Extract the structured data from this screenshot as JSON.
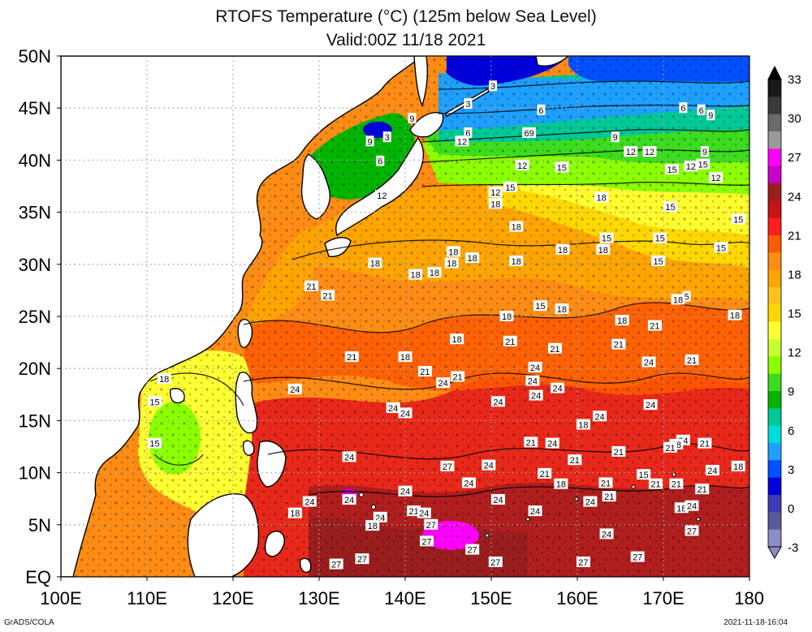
{
  "title_line1": "RTOFS Temperature (°C) (125m below Sea Level)",
  "title_line2": "Valid:00Z 11/18 2021",
  "footer_left": "GrADS/COLA",
  "footer_right": "2021-11-18-16:04",
  "map": {
    "lon_range": [
      100,
      180
    ],
    "lat_range": [
      0,
      50
    ],
    "lon_ticks": [
      {
        "value": 100,
        "label": "100E"
      },
      {
        "value": 110,
        "label": "110E"
      },
      {
        "value": 120,
        "label": "120E"
      },
      {
        "value": 130,
        "label": "130E"
      },
      {
        "value": 140,
        "label": "140E"
      },
      {
        "value": 150,
        "label": "150E"
      },
      {
        "value": 160,
        "label": "160E"
      },
      {
        "value": 170,
        "label": "170E"
      },
      {
        "value": 180,
        "label": "180"
      }
    ],
    "lat_ticks": [
      {
        "value": 0,
        "label": "EQ"
      },
      {
        "value": 5,
        "label": "5N"
      },
      {
        "value": 10,
        "label": "10N"
      },
      {
        "value": 15,
        "label": "15N"
      },
      {
        "value": 20,
        "label": "20N"
      },
      {
        "value": 25,
        "label": "25N"
      },
      {
        "value": 30,
        "label": "30N"
      },
      {
        "value": 35,
        "label": "35N"
      },
      {
        "value": 40,
        "label": "40N"
      },
      {
        "value": 45,
        "label": "45N"
      },
      {
        "value": 50,
        "label": "50N"
      }
    ],
    "grid": "dotted",
    "contour_labels": [
      {
        "lon": 150.2,
        "lat": 47.1,
        "text": "3"
      },
      {
        "lon": 147.3,
        "lat": 45.4,
        "text": "3"
      },
      {
        "lon": 155.8,
        "lat": 44.8,
        "text": "6"
      },
      {
        "lon": 172.3,
        "lat": 45.0,
        "text": "6"
      },
      {
        "lon": 174.4,
        "lat": 44.8,
        "text": "6"
      },
      {
        "lon": 175.5,
        "lat": 44.3,
        "text": "9"
      },
      {
        "lon": 154.4,
        "lat": 42.6,
        "text": "69"
      },
      {
        "lon": 164.4,
        "lat": 42.2,
        "text": "9"
      },
      {
        "lon": 166.2,
        "lat": 40.8,
        "text": "12"
      },
      {
        "lon": 168.4,
        "lat": 40.8,
        "text": "12"
      },
      {
        "lon": 174.8,
        "lat": 40.8,
        "text": "9"
      },
      {
        "lon": 147.3,
        "lat": 42.6,
        "text": "6"
      },
      {
        "lon": 146.6,
        "lat": 41.8,
        "text": "12"
      },
      {
        "lon": 140.8,
        "lat": 44.0,
        "text": "9"
      },
      {
        "lon": 137.9,
        "lat": 42.2,
        "text": "3"
      },
      {
        "lon": 135.9,
        "lat": 41.8,
        "text": "9"
      },
      {
        "lon": 137.1,
        "lat": 39.9,
        "text": "6"
      },
      {
        "lon": 137.3,
        "lat": 36.6,
        "text": "12"
      },
      {
        "lon": 153.6,
        "lat": 39.5,
        "text": "12"
      },
      {
        "lon": 158.2,
        "lat": 39.3,
        "text": "15"
      },
      {
        "lon": 171.0,
        "lat": 39.1,
        "text": "15"
      },
      {
        "lon": 173.2,
        "lat": 39.4,
        "text": "12"
      },
      {
        "lon": 174.6,
        "lat": 39.6,
        "text": "15"
      },
      {
        "lon": 176.1,
        "lat": 38.3,
        "text": "12"
      },
      {
        "lon": 150.5,
        "lat": 36.9,
        "text": "12"
      },
      {
        "lon": 152.2,
        "lat": 37.4,
        "text": "15"
      },
      {
        "lon": 150.5,
        "lat": 35.8,
        "text": "18"
      },
      {
        "lon": 162.8,
        "lat": 36.4,
        "text": "18"
      },
      {
        "lon": 170.8,
        "lat": 35.5,
        "text": "15"
      },
      {
        "lon": 178.7,
        "lat": 34.3,
        "text": "15"
      },
      {
        "lon": 152.9,
        "lat": 33.6,
        "text": "18"
      },
      {
        "lon": 163.4,
        "lat": 32.5,
        "text": "15"
      },
      {
        "lon": 169.6,
        "lat": 32.5,
        "text": "15"
      },
      {
        "lon": 176.7,
        "lat": 31.6,
        "text": "15"
      },
      {
        "lon": 147.8,
        "lat": 30.6,
        "text": "18"
      },
      {
        "lon": 145.6,
        "lat": 31.2,
        "text": "18"
      },
      {
        "lon": 158.3,
        "lat": 31.4,
        "text": "18"
      },
      {
        "lon": 163.0,
        "lat": 31.4,
        "text": "18"
      },
      {
        "lon": 145.4,
        "lat": 30.1,
        "text": "18"
      },
      {
        "lon": 136.5,
        "lat": 30.1,
        "text": "18"
      },
      {
        "lon": 141.2,
        "lat": 29.0,
        "text": "18"
      },
      {
        "lon": 143.4,
        "lat": 29.2,
        "text": "18"
      },
      {
        "lon": 152.9,
        "lat": 30.3,
        "text": "18"
      },
      {
        "lon": 169.4,
        "lat": 30.3,
        "text": "15"
      },
      {
        "lon": 129.1,
        "lat": 27.9,
        "text": "21"
      },
      {
        "lon": 131.0,
        "lat": 27.0,
        "text": "21"
      },
      {
        "lon": 172.7,
        "lat": 26.9,
        "text": "5"
      },
      {
        "lon": 171.7,
        "lat": 26.6,
        "text": "18"
      },
      {
        "lon": 155.7,
        "lat": 26.0,
        "text": "15"
      },
      {
        "lon": 158.2,
        "lat": 25.7,
        "text": "18"
      },
      {
        "lon": 178.3,
        "lat": 25.1,
        "text": "18"
      },
      {
        "lon": 151.8,
        "lat": 25.0,
        "text": "18"
      },
      {
        "lon": 165.2,
        "lat": 24.6,
        "text": "18"
      },
      {
        "lon": 169.0,
        "lat": 24.1,
        "text": "21"
      },
      {
        "lon": 146.0,
        "lat": 22.8,
        "text": "18"
      },
      {
        "lon": 152.2,
        "lat": 22.6,
        "text": "21"
      },
      {
        "lon": 164.8,
        "lat": 22.3,
        "text": "21"
      },
      {
        "lon": 157.4,
        "lat": 21.9,
        "text": "21"
      },
      {
        "lon": 133.8,
        "lat": 21.1,
        "text": "21"
      },
      {
        "lon": 140.0,
        "lat": 21.1,
        "text": "18"
      },
      {
        "lon": 173.3,
        "lat": 20.8,
        "text": "21"
      },
      {
        "lon": 168.3,
        "lat": 20.6,
        "text": "24"
      },
      {
        "lon": 155.1,
        "lat": 20.1,
        "text": "24"
      },
      {
        "lon": 142.3,
        "lat": 19.7,
        "text": "21"
      },
      {
        "lon": 146.1,
        "lat": 19.2,
        "text": "21"
      },
      {
        "lon": 112.0,
        "lat": 19.0,
        "text": "18"
      },
      {
        "lon": 144.4,
        "lat": 18.6,
        "text": "24"
      },
      {
        "lon": 154.8,
        "lat": 18.8,
        "text": "24"
      },
      {
        "lon": 157.7,
        "lat": 18.1,
        "text": "24"
      },
      {
        "lon": 127.2,
        "lat": 18.0,
        "text": "24"
      },
      {
        "lon": 155.2,
        "lat": 17.4,
        "text": "24"
      },
      {
        "lon": 110.9,
        "lat": 16.8,
        "text": "15"
      },
      {
        "lon": 150.8,
        "lat": 16.8,
        "text": "24"
      },
      {
        "lon": 168.5,
        "lat": 16.5,
        "text": "24"
      },
      {
        "lon": 138.6,
        "lat": 16.2,
        "text": "24"
      },
      {
        "lon": 140.0,
        "lat": 15.7,
        "text": "24"
      },
      {
        "lon": 162.6,
        "lat": 15.4,
        "text": "24"
      },
      {
        "lon": 160.7,
        "lat": 14.6,
        "text": "18"
      },
      {
        "lon": 110.9,
        "lat": 12.8,
        "text": "15"
      },
      {
        "lon": 154.6,
        "lat": 12.9,
        "text": "21"
      },
      {
        "lon": 157.1,
        "lat": 12.8,
        "text": "24"
      },
      {
        "lon": 172.3,
        "lat": 13.1,
        "text": "24"
      },
      {
        "lon": 171.5,
        "lat": 12.7,
        "text": "18"
      },
      {
        "lon": 174.8,
        "lat": 12.8,
        "text": "21"
      },
      {
        "lon": 164.8,
        "lat": 12.0,
        "text": "21"
      },
      {
        "lon": 170.8,
        "lat": 12.4,
        "text": "21"
      },
      {
        "lon": 133.5,
        "lat": 11.5,
        "text": "24"
      },
      {
        "lon": 159.7,
        "lat": 11.2,
        "text": "21"
      },
      {
        "lon": 149.7,
        "lat": 10.7,
        "text": "24"
      },
      {
        "lon": 144.9,
        "lat": 10.6,
        "text": "27"
      },
      {
        "lon": 178.7,
        "lat": 10.6,
        "text": "18"
      },
      {
        "lon": 175.7,
        "lat": 10.2,
        "text": "24"
      },
      {
        "lon": 156.2,
        "lat": 9.9,
        "text": "21"
      },
      {
        "lon": 167.7,
        "lat": 9.8,
        "text": "15"
      },
      {
        "lon": 147.4,
        "lat": 9.0,
        "text": "24"
      },
      {
        "lon": 158.1,
        "lat": 8.9,
        "text": "18"
      },
      {
        "lon": 163.3,
        "lat": 9.0,
        "text": "21"
      },
      {
        "lon": 169.1,
        "lat": 8.9,
        "text": "21"
      },
      {
        "lon": 171.5,
        "lat": 8.9,
        "text": "21"
      },
      {
        "lon": 174.5,
        "lat": 8.4,
        "text": "21"
      },
      {
        "lon": 140.0,
        "lat": 8.2,
        "text": "24"
      },
      {
        "lon": 161.5,
        "lat": 7.2,
        "text": "24"
      },
      {
        "lon": 163.7,
        "lat": 7.7,
        "text": "21"
      },
      {
        "lon": 128.9,
        "lat": 7.2,
        "text": "24"
      },
      {
        "lon": 133.5,
        "lat": 7.4,
        "text": "24"
      },
      {
        "lon": 150.8,
        "lat": 7.4,
        "text": "24"
      },
      {
        "lon": 172.1,
        "lat": 6.6,
        "text": "18"
      },
      {
        "lon": 173.3,
        "lat": 6.8,
        "text": "24"
      },
      {
        "lon": 141.0,
        "lat": 6.3,
        "text": "21"
      },
      {
        "lon": 142.2,
        "lat": 6.1,
        "text": "24"
      },
      {
        "lon": 155.1,
        "lat": 6.3,
        "text": "24"
      },
      {
        "lon": 137.1,
        "lat": 5.7,
        "text": "24"
      },
      {
        "lon": 136.2,
        "lat": 4.9,
        "text": "18"
      },
      {
        "lon": 127.2,
        "lat": 6.1,
        "text": "18"
      },
      {
        "lon": 143.0,
        "lat": 5.0,
        "text": "27"
      },
      {
        "lon": 173.3,
        "lat": 4.4,
        "text": "27"
      },
      {
        "lon": 163.4,
        "lat": 4.1,
        "text": "24"
      },
      {
        "lon": 142.5,
        "lat": 3.4,
        "text": "27"
      },
      {
        "lon": 147.8,
        "lat": 2.6,
        "text": "27"
      },
      {
        "lon": 167.0,
        "lat": 1.9,
        "text": "27"
      },
      {
        "lon": 150.5,
        "lat": 1.4,
        "text": "27"
      },
      {
        "lon": 160.7,
        "lat": 1.4,
        "text": "27"
      },
      {
        "lon": 135.0,
        "lat": 1.7,
        "text": "27"
      },
      {
        "lon": 132.0,
        "lat": 1.2,
        "text": "27"
      }
    ]
  },
  "colorbar": {
    "labels": [
      "33",
      "30",
      "27",
      "24",
      "21",
      "18",
      "15",
      "12",
      "9",
      "6",
      "3",
      "0",
      "-3"
    ],
    "colors": [
      "#1a1a1a",
      "#3a3a3a",
      "#6a6a6a",
      "#9a9a9a",
      "#ff00ff",
      "#c800c8",
      "#9b1e1e",
      "#c81414",
      "#ff1e1e",
      "#ff5a00",
      "#ff8c14",
      "#ffa500",
      "#ffc21e",
      "#ffd800",
      "#ffff33",
      "#c8ff32",
      "#8cff00",
      "#3cdc1e",
      "#00b400",
      "#00c896",
      "#00dcdc",
      "#1ea0ff",
      "#0050ff",
      "#0000dc",
      "#3c3cb4",
      "#5a5a9a",
      "#8c8cc8"
    ]
  }
}
